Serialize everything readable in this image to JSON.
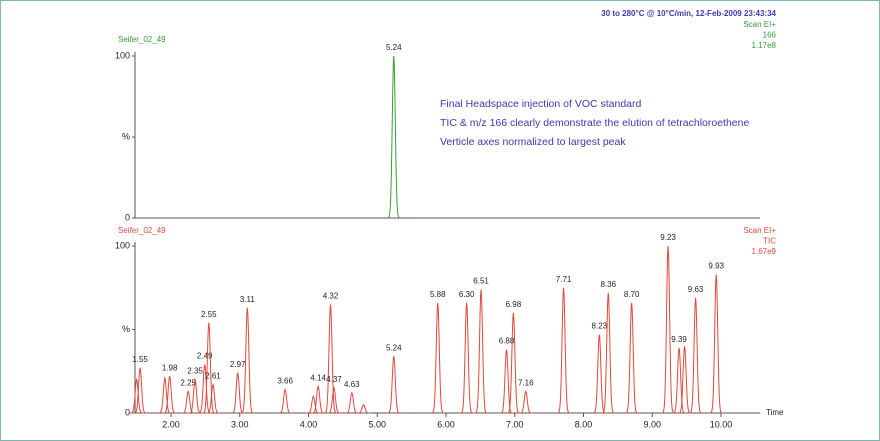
{
  "chart_data": [
    {
      "type": "chromatogram",
      "title": "Seifer_02_49",
      "subtitle": "30 to 280°C @ 10°C/min,  12-Feb-2009   23:43:34",
      "info": [
        "Scan EI+",
        "166",
        "1.17e8"
      ],
      "annotations": [
        "Final Headspace injection of VOC standard",
        "TIC & m/z 166 clearly demonstrate the elution of tetrachloroethene",
        "Verticle axes normalized to largest peak"
      ],
      "color": "#3a9a3a",
      "x": [
        5.24
      ],
      "values": [
        100
      ],
      "peak_labels": [
        "5.24"
      ],
      "xlim": [
        1.476,
        10.567
      ],
      "ylim": [
        0,
        100
      ],
      "yticks": [
        100,
        {
          "value": 50,
          "label": "%"
        },
        0
      ]
    },
    {
      "type": "chromatogram",
      "title": "Seifer_02_49",
      "info": [
        "Scan EI+",
        "TIC",
        "1.67e9"
      ],
      "color": "#e0483c",
      "x": [
        1.5,
        1.55,
        1.91,
        1.98,
        2.25,
        2.35,
        2.49,
        2.55,
        2.61,
        2.97,
        3.11,
        3.66,
        4.07,
        4.14,
        4.32,
        4.37,
        4.63,
        4.8,
        5.24,
        5.88,
        6.3,
        6.51,
        6.88,
        6.98,
        7.16,
        7.71,
        8.23,
        8.36,
        8.7,
        9.23,
        9.39,
        9.47,
        9.63,
        9.93
      ],
      "values": [
        20,
        27,
        21,
        22,
        13,
        20,
        29,
        54,
        17,
        24,
        63,
        14,
        10,
        16,
        65,
        15,
        12,
        5,
        34,
        66,
        66,
        74,
        38,
        60,
        13,
        75,
        47,
        72,
        66,
        100,
        39,
        40,
        69,
        83
      ],
      "peak_labels": [
        null,
        "1.55",
        null,
        "1.98",
        "2.25",
        "2.35",
        "2.49",
        "2.55",
        "2.61",
        "2.97",
        "3.11",
        "3.66",
        null,
        "4.14",
        "4.32",
        "4.37",
        "4.63",
        null,
        "5.24",
        "5.88",
        "6.30",
        "6.51",
        "6.88",
        "6.98",
        "7.16",
        "7.71",
        "8.23",
        "8.36",
        "8.70",
        "9.23",
        "9.39",
        null,
        "9.63",
        "9.93"
      ],
      "xlim": [
        1.476,
        10.567
      ],
      "ylim": [
        0,
        100
      ],
      "yticks": [
        100,
        {
          "value": 50,
          "label": "%"
        },
        0
      ],
      "xticks": [
        {
          "value": 2,
          "label": "2.00"
        },
        {
          "value": 3,
          "label": "3.00"
        },
        {
          "value": 4,
          "label": "4.00"
        },
        {
          "value": 5,
          "label": "5.00"
        },
        {
          "value": 6,
          "label": "6.00"
        },
        {
          "value": 7,
          "label": "7.00"
        },
        {
          "value": 8,
          "label": "8.00"
        },
        {
          "value": 9,
          "label": "9.00"
        },
        {
          "value": 10,
          "label": "10.00"
        }
      ],
      "xlabel": "Time"
    }
  ]
}
